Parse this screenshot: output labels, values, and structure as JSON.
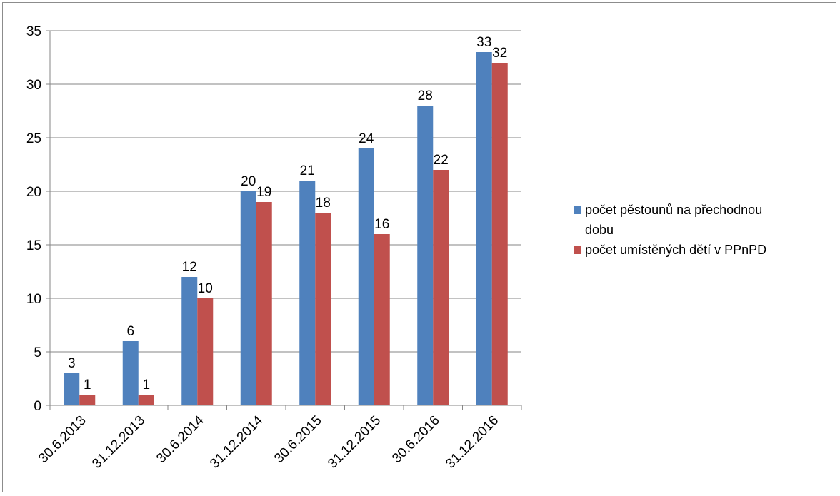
{
  "chart_data": {
    "type": "bar",
    "title": "",
    "xlabel": "",
    "ylabel": "",
    "categories": [
      "30.6.2013",
      "31.12.2013",
      "30.6.2014",
      "31.12.2014",
      "30.6.2015",
      "31.12.2015",
      "30.6.2016",
      "31.12.2016"
    ],
    "series": [
      {
        "name": "počet pěstounů na přechodnou dobu",
        "values": [
          3,
          6,
          12,
          20,
          21,
          24,
          28,
          33
        ],
        "color": "#4F81BD"
      },
      {
        "name": "počet umístěných dětí v PPnPD",
        "values": [
          1,
          1,
          10,
          19,
          18,
          16,
          22,
          32
        ],
        "color": "#C0504D"
      }
    ],
    "ylim": [
      0,
      35
    ],
    "yticks": [
      0,
      5,
      10,
      15,
      20,
      25,
      30,
      35
    ],
    "grid": true,
    "legend_position": "right",
    "data_labels": true
  }
}
